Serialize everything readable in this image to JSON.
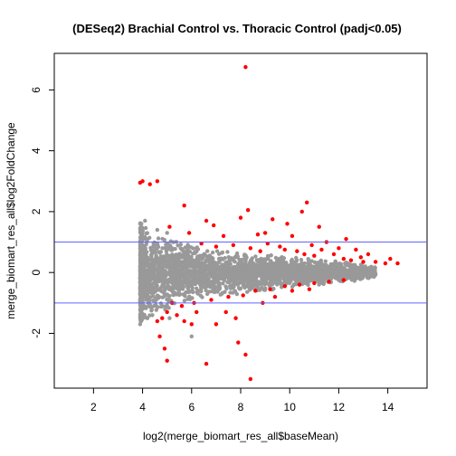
{
  "chart_data": {
    "type": "scatter",
    "title": "(DESeq2) Brachial Control vs. Thoracic Control (padj<0.05)",
    "xlabel": "log2(merge_biomart_res_all$baseMean)",
    "ylabel": "merge_biomart_res_all$log2FoldChange",
    "xlim": [
      0.4,
      15.6
    ],
    "ylim": [
      -3.8,
      7.2
    ],
    "x_ticks": [
      2,
      4,
      6,
      8,
      10,
      12,
      14
    ],
    "y_ticks": [
      -2,
      0,
      2,
      4,
      6
    ],
    "hlines": [
      1,
      -1
    ],
    "hline_color": "#6464ff",
    "grid": false,
    "series": [
      {
        "color": "#999999",
        "description": "not significant (dense cloud)",
        "envelope": [
          [
            3.9,
            1.7,
            -1.75
          ],
          [
            4.5,
            1.3,
            -1.4
          ],
          [
            5.5,
            1.0,
            -1.05
          ],
          [
            6.5,
            0.8,
            -0.85
          ],
          [
            7.5,
            0.7,
            -0.75
          ],
          [
            8.5,
            0.62,
            -0.65
          ],
          [
            9.5,
            0.55,
            -0.55
          ],
          [
            10.5,
            0.47,
            -0.45
          ],
          [
            11.5,
            0.4,
            -0.38
          ],
          [
            12.5,
            0.32,
            -0.3
          ],
          [
            13.5,
            0.2,
            -0.15
          ]
        ],
        "outliers": [
          [
            3.9,
            1.6
          ],
          [
            4.1,
            1.7
          ],
          [
            4.6,
            1.4
          ],
          [
            5.0,
            1.3
          ],
          [
            3.9,
            -1.7
          ],
          [
            4.2,
            -1.5
          ],
          [
            6.0,
            -2.1
          ],
          [
            5.1,
            -1.5
          ],
          [
            4.4,
            -1.4
          ]
        ]
      },
      {
        "color": "#ff0000",
        "description": "padj<0.05",
        "points": [
          [
            8.2,
            6.75
          ],
          [
            3.9,
            2.95
          ],
          [
            4.0,
            3.0
          ],
          [
            4.3,
            2.9
          ],
          [
            4.6,
            3.0
          ],
          [
            5.7,
            2.2
          ],
          [
            8.3,
            2.05
          ],
          [
            10.7,
            2.3
          ],
          [
            10.5,
            2.0
          ],
          [
            11.2,
            1.5
          ],
          [
            6.6,
            1.7
          ],
          [
            5.1,
            1.5
          ],
          [
            5.9,
            1.3
          ],
          [
            6.9,
            1.55
          ],
          [
            8.0,
            1.8
          ],
          [
            9.3,
            1.75
          ],
          [
            8.7,
            1.25
          ],
          [
            9.9,
            1.6
          ],
          [
            12.3,
            1.1
          ],
          [
            7.3,
            1.2
          ],
          [
            9.0,
            1.3
          ],
          [
            10.1,
            1.2
          ],
          [
            11.5,
            1.0
          ],
          [
            10.9,
            0.9
          ],
          [
            9.6,
            0.85
          ],
          [
            7.7,
            0.9
          ],
          [
            8.4,
            0.8
          ],
          [
            12.0,
            0.8
          ],
          [
            12.7,
            0.75
          ],
          [
            13.2,
            0.6
          ],
          [
            13.5,
            0.35
          ],
          [
            14.1,
            0.45
          ],
          [
            14.4,
            0.3
          ],
          [
            13.9,
            0.3
          ],
          [
            12.9,
            0.5
          ],
          [
            11.8,
            0.6
          ],
          [
            10.3,
            0.7
          ],
          [
            9.1,
            0.95
          ],
          [
            6.4,
            0.95
          ],
          [
            7.0,
            0.85
          ],
          [
            11.0,
            0.55
          ],
          [
            12.5,
            0.4
          ],
          [
            13.0,
            0.35
          ],
          [
            12.2,
            0.45
          ],
          [
            10.6,
            0.6
          ],
          [
            11.3,
            0.75
          ],
          [
            9.8,
            0.75
          ],
          [
            8.8,
            0.7
          ],
          [
            5.2,
            -1.0
          ],
          [
            5.6,
            -1.1
          ],
          [
            6.1,
            -1.0
          ],
          [
            6.8,
            -0.9
          ],
          [
            7.5,
            -0.8
          ],
          [
            8.1,
            -0.75
          ],
          [
            8.6,
            -0.6
          ],
          [
            9.2,
            -0.55
          ],
          [
            9.8,
            -0.45
          ],
          [
            10.4,
            -0.4
          ],
          [
            11.0,
            -0.35
          ],
          [
            11.6,
            -0.3
          ],
          [
            12.2,
            -0.25
          ],
          [
            5.0,
            -1.3
          ],
          [
            5.4,
            -1.4
          ],
          [
            4.8,
            -1.5
          ],
          [
            4.6,
            -1.6
          ],
          [
            4.7,
            -2.1
          ],
          [
            4.9,
            -2.5
          ],
          [
            5.0,
            -2.9
          ],
          [
            6.6,
            -3.0
          ],
          [
            7.9,
            -2.3
          ],
          [
            8.4,
            -3.5
          ],
          [
            8.2,
            -2.7
          ],
          [
            7.8,
            -1.5
          ],
          [
            7.4,
            -1.3
          ],
          [
            6.2,
            -1.3
          ],
          [
            8.9,
            -1.0
          ],
          [
            9.4,
            -0.8
          ],
          [
            10.1,
            -0.6
          ],
          [
            10.8,
            -0.55
          ],
          [
            7.0,
            -1.7
          ],
          [
            6.0,
            -1.7
          ],
          [
            5.7,
            -1.6
          ]
        ]
      }
    ]
  }
}
